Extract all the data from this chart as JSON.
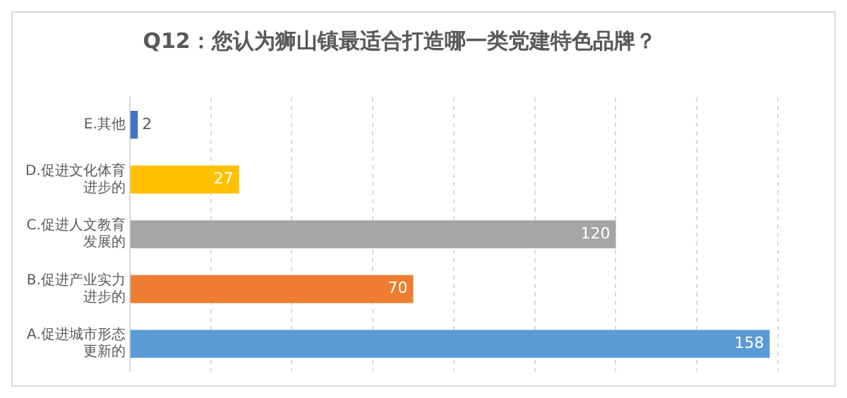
{
  "chart_data": {
    "type": "bar",
    "orientation": "horizontal",
    "title": "Q12：您认为狮山镇最适合打造哪一类党建特色品牌？",
    "categories": [
      "E.其他",
      "D.促进文化体育进步的",
      "C.促进人文教育发展的",
      "B.促进产业实力进步的",
      "A.促进城市形态更新的"
    ],
    "values": [
      2,
      27,
      120,
      70,
      158
    ],
    "colors": [
      "#4472c4",
      "#ffc000",
      "#a5a5a5",
      "#ed7d31",
      "#5b9bd5"
    ],
    "xlim": [
      0,
      160
    ],
    "xticks": [
      {
        "value": 0,
        "label": null
      },
      {
        "value": 20,
        "label": null
      },
      {
        "value": 40,
        "label": null
      },
      {
        "value": 60,
        "label": null
      },
      {
        "value": 80,
        "label": null
      },
      {
        "value": 100,
        "label": null
      },
      {
        "value": 120,
        "label": null
      },
      {
        "value": 140,
        "label": null
      },
      {
        "value": 160,
        "label": null
      }
    ],
    "tick_labels": "y",
    "grid": "x",
    "data_labels": true
  }
}
